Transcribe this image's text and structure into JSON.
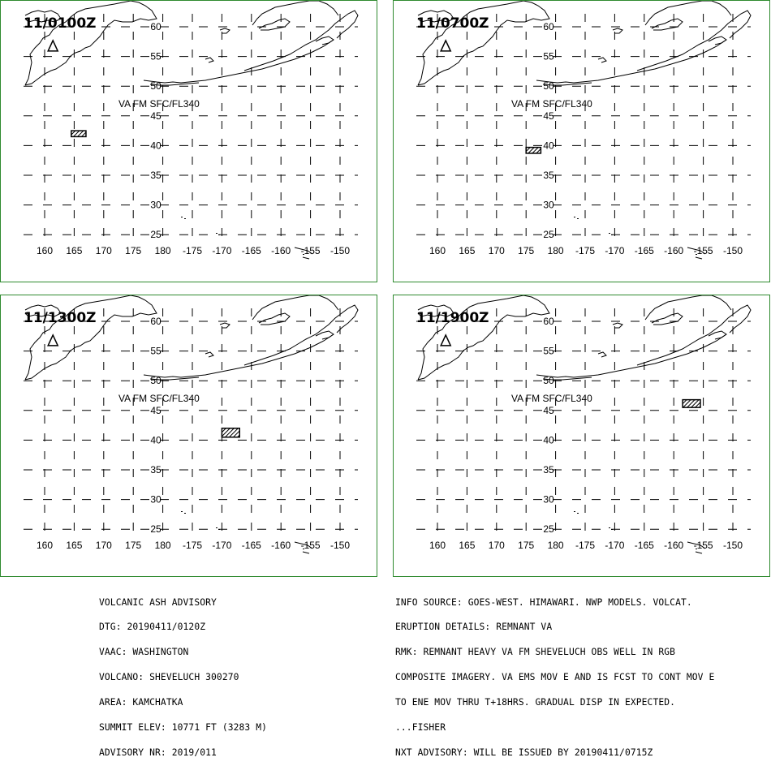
{
  "panels": [
    {
      "time": "11/0100Z",
      "ash_label": "VA FM SFC/FL340",
      "ash_box": {
        "lon": [
          164.5,
          167
        ],
        "lat": [
          41.5,
          42.5
        ]
      }
    },
    {
      "time": "11/0700Z",
      "ash_label": "VA FM SFC/FL340",
      "ash_box": {
        "lon": [
          175,
          177.5
        ],
        "lat": [
          38.7,
          39.7
        ]
      }
    },
    {
      "time": "11/1300Z",
      "ash_label": "VA FM SFC/FL340",
      "ash_box": {
        "lon": [
          -170,
          -167
        ],
        "lat": [
          40.5,
          42.0
        ]
      }
    },
    {
      "time": "11/1900Z",
      "ash_label": "VA FM SFC/FL340",
      "ash_box": {
        "lon": [
          -158.5,
          -155.5
        ],
        "lat": [
          45.5,
          46.8
        ]
      }
    }
  ],
  "map": {
    "lon_labels": [
      "160",
      "165",
      "170",
      "175",
      "180",
      "-175",
      "-170",
      "-165",
      "-160",
      "-155",
      "-150"
    ],
    "lat_labels": [
      "60",
      "55",
      "50",
      "45",
      "40",
      "35",
      "30",
      "25"
    ],
    "volcano": {
      "name": "SHEVELUCH",
      "lon": 161.4,
      "lat": 56.6
    }
  },
  "advisory_left": [
    "VOLCANIC ASH ADVISORY",
    "DTG: 20190411/0120Z",
    "VAAC: WASHINGTON",
    "VOLCANO: SHEVELUCH 300270",
    "AREA: KAMCHATKA",
    "SUMMIT ELEV: 10771 FT (3283 M)",
    "ADVISORY NR: 2019/011"
  ],
  "advisory_right": [
    "INFO SOURCE: GOES-WEST. HIMAWARI. NWP MODELS. VOLCAT.",
    "ERUPTION DETAILS: REMNANT VA",
    "RMK: REMNANT HEAVY VA FM SHEVELUCH OBS WELL IN RGB",
    "COMPOSITE IMAGERY. VA EMS MOV E AND IS FCST TO CONT MOV E",
    "TO ENE MOV THRU T+18HRS. GRADUAL DISP IN EXPECTED.",
    "...FISHER",
    "NXT ADVISORY: WILL BE ISSUED BY 20190411/0715Z"
  ]
}
